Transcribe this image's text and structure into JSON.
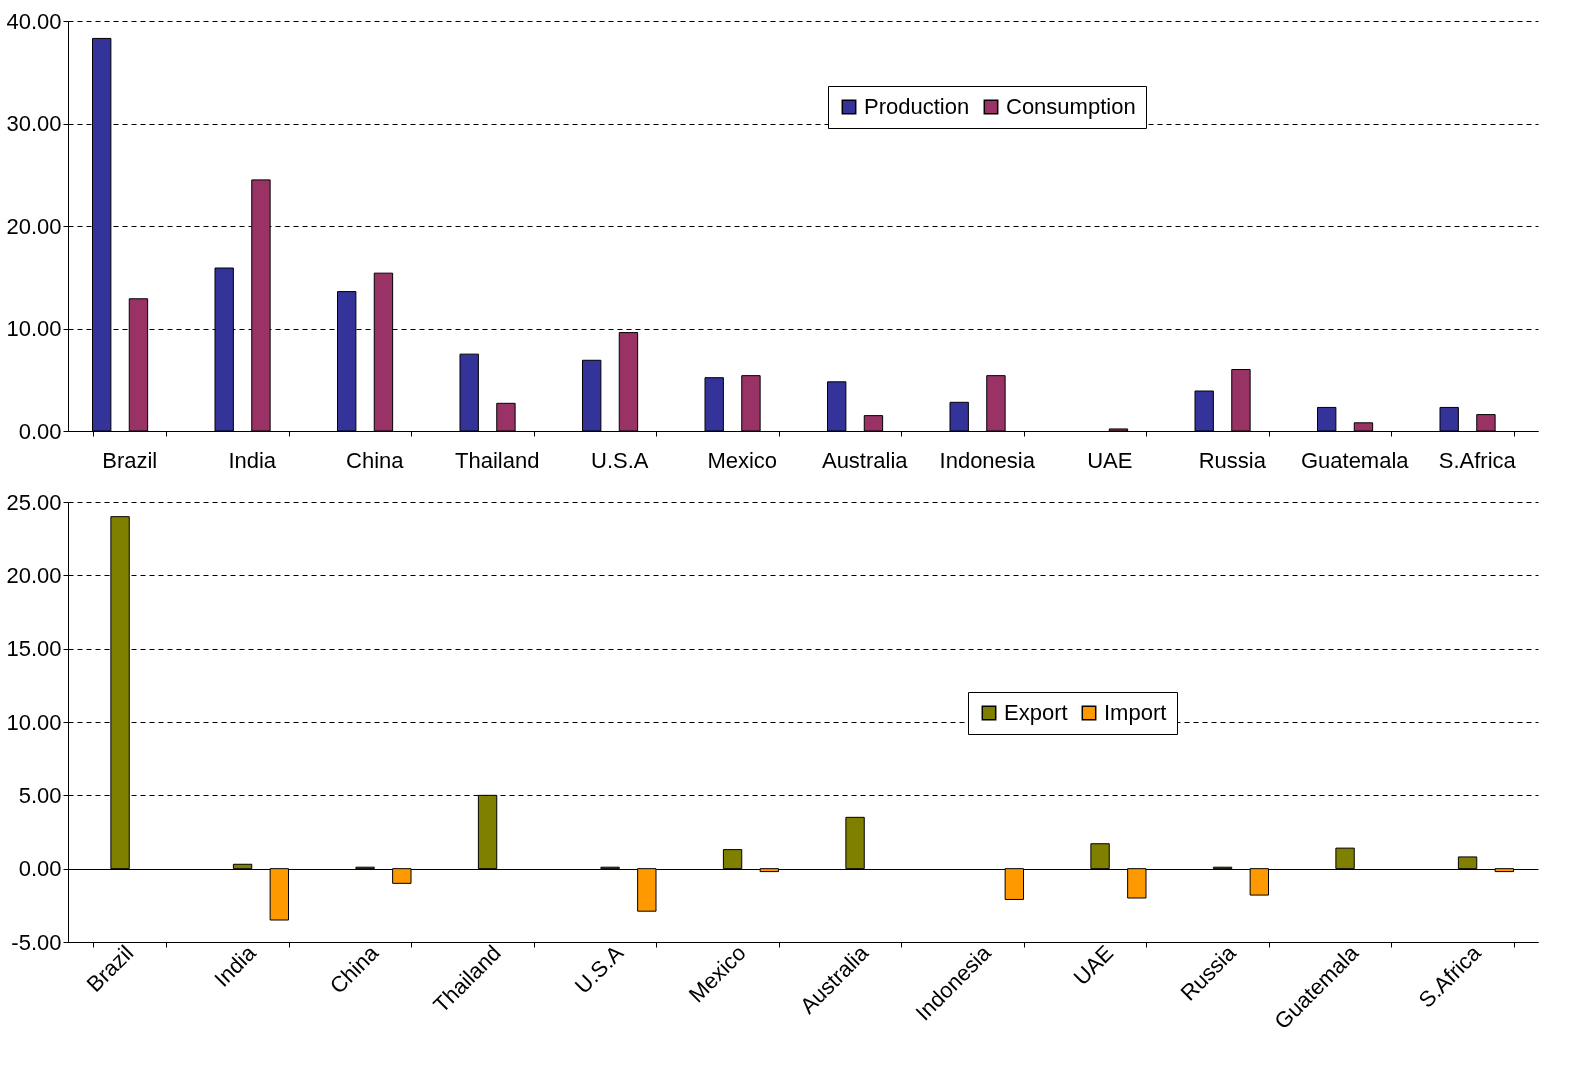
{
  "chart_data": [
    {
      "type": "bar",
      "categories": [
        "Brazil",
        "India",
        "China",
        "Thailand",
        "U.S.A",
        "Mexico",
        "Australia",
        "Indonesia",
        "UAE",
        "Russia",
        "Guatemala",
        "S.Africa"
      ],
      "series": [
        {
          "name": "Production",
          "color": "#333399",
          "values": [
            38.3,
            15.9,
            13.6,
            7.5,
            6.9,
            5.2,
            4.8,
            2.8,
            null,
            3.9,
            2.3,
            2.3
          ]
        },
        {
          "name": "Consumption",
          "color": "#993366",
          "values": [
            12.9,
            24.5,
            15.4,
            2.7,
            9.6,
            5.4,
            1.5,
            5.4,
            0.2,
            6.0,
            0.8,
            1.6
          ]
        }
      ],
      "ylim": [
        0,
        40
      ],
      "yticks": [
        {
          "value": 0,
          "label": "0.00"
        },
        {
          "value": 10,
          "label": "10.00"
        },
        {
          "value": 20,
          "label": "20.00"
        },
        {
          "value": 30,
          "label": "30.00"
        },
        {
          "value": 40,
          "label": "40.00"
        }
      ],
      "grid": "y",
      "legend": "top right"
    },
    {
      "type": "bar",
      "categories": [
        "Brazil",
        "India",
        "China",
        "Thailand",
        "U.S.A",
        "Mexico",
        "Australia",
        "Indonesia",
        "UAE",
        "Russia",
        "Guatemala",
        "S.Africa"
      ],
      "series": [
        {
          "name": "Export",
          "color": "#808000",
          "values": [
            24.0,
            0.3,
            0.1,
            5.0,
            0.1,
            1.3,
            3.5,
            null,
            1.7,
            0.1,
            1.4,
            0.8
          ]
        },
        {
          "name": "Import",
          "color": "#ff9900",
          "values": [
            null,
            -3.5,
            -1.0,
            null,
            -2.9,
            -0.2,
            null,
            -2.1,
            -2.0,
            -1.8,
            null,
            -0.2
          ]
        }
      ],
      "ylim": [
        -5,
        25
      ],
      "yticks": [
        {
          "value": -5,
          "label": "-5.00"
        },
        {
          "value": 0,
          "label": "0.00"
        },
        {
          "value": 5,
          "label": "5.00"
        },
        {
          "value": 10,
          "label": "10.00"
        },
        {
          "value": 15,
          "label": "15.00"
        },
        {
          "value": 20,
          "label": "20.00"
        },
        {
          "value": 25,
          "label": "25.00"
        }
      ],
      "grid": "y",
      "legend": "right"
    }
  ]
}
